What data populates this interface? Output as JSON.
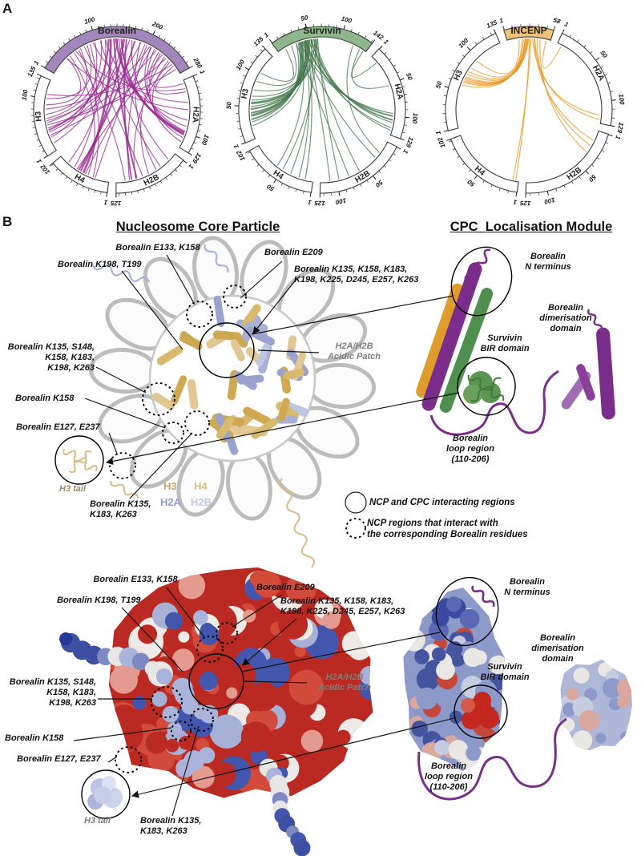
{
  "figure": {
    "panel_a_label": "A",
    "panel_b_label": "B"
  },
  "chart_data": [
    {
      "type": "chord-circos",
      "title": "Borealin crosslinks to nucleosome histones",
      "protein": {
        "name": "Borealin",
        "length": 280,
        "band_color": "#a287bd",
        "chord_color": "#96278f",
        "tick_labels": [
          1,
          100,
          200,
          280
        ]
      },
      "histones": [
        {
          "name": "H2A",
          "length": 129,
          "tick_labels": [
            1,
            100,
            129
          ]
        },
        {
          "name": "H2B",
          "length": 125,
          "tick_labels": [
            1,
            125
          ]
        },
        {
          "name": "H4",
          "length": 102,
          "tick_labels": [
            1,
            102
          ]
        },
        {
          "name": "H3",
          "length": 135,
          "tick_labels": [
            1,
            100,
            135
          ]
        }
      ],
      "crosslinks": [
        [
          138,
          "H2A",
          100,
          3
        ],
        [
          148,
          "H2A",
          104,
          2
        ],
        [
          206,
          "H2A",
          97,
          1
        ],
        [
          214,
          "H2A",
          103,
          1
        ],
        [
          228,
          "H2A",
          110,
          1
        ],
        [
          118,
          "H2A",
          76,
          1
        ],
        [
          94,
          "H2A",
          42,
          1
        ],
        [
          58,
          "H2A",
          16,
          1
        ],
        [
          248,
          "H2A",
          118,
          1
        ],
        [
          168,
          "H2A",
          88,
          1
        ],
        [
          36,
          "H2A",
          56,
          1
        ],
        [
          262,
          "H2A",
          22,
          1
        ],
        [
          224,
          "H2A",
          6,
          1
        ],
        [
          134,
          "H2B",
          86,
          2
        ],
        [
          158,
          "H2B",
          96,
          2
        ],
        [
          198,
          "H2B",
          100,
          1
        ],
        [
          238,
          "H2B",
          62,
          1
        ],
        [
          108,
          "H2B",
          36,
          1
        ],
        [
          76,
          "H2B",
          74,
          1
        ],
        [
          54,
          "H2B",
          108,
          1
        ],
        [
          184,
          "H2B",
          46,
          1
        ],
        [
          144,
          "H2B",
          16,
          1
        ],
        [
          252,
          "H2B",
          88,
          1
        ],
        [
          128,
          "H4",
          50,
          3
        ],
        [
          154,
          "H4",
          56,
          2
        ],
        [
          174,
          "H4",
          60,
          2
        ],
        [
          208,
          "H4",
          46,
          1
        ],
        [
          88,
          "H4",
          70,
          1
        ],
        [
          64,
          "H4",
          30,
          1
        ],
        [
          232,
          "H4",
          64,
          1
        ],
        [
          118,
          "H4",
          84,
          1
        ],
        [
          44,
          "H4",
          40,
          1
        ],
        [
          194,
          "H4",
          26,
          1
        ],
        [
          124,
          "H3",
          40,
          2
        ],
        [
          142,
          "H3",
          54,
          1
        ],
        [
          164,
          "H3",
          36,
          1
        ],
        [
          186,
          "H3",
          58,
          1
        ],
        [
          218,
          "H3",
          44,
          1
        ],
        [
          98,
          "H3",
          26,
          1
        ],
        [
          68,
          "H3",
          70,
          1
        ],
        [
          38,
          "H3",
          88,
          1
        ],
        [
          242,
          "H3",
          30,
          1
        ],
        [
          258,
          "H3",
          108,
          1
        ],
        [
          152,
          "H3",
          14,
          1
        ],
        [
          204,
          "H3",
          80,
          1
        ],
        [
          270,
          "H3",
          50,
          1
        ],
        [
          110,
          "H3",
          62,
          1
        ],
        [
          82,
          "H3",
          100,
          1
        ]
      ]
    },
    {
      "type": "chord-circos",
      "title": "Survivin crosslinks to nucleosome histones",
      "protein": {
        "name": "Survivin",
        "length": 142,
        "band_color": "#8fb78c",
        "chord_color": "#41754a",
        "tick_labels": [
          1,
          50,
          100,
          142
        ]
      },
      "histones": [
        {
          "name": "H2A",
          "length": 129,
          "tick_labels": [
            1,
            50,
            100,
            129
          ]
        },
        {
          "name": "H2B",
          "length": 125,
          "tick_labels": [
            1,
            50,
            100,
            125
          ]
        },
        {
          "name": "H4",
          "length": 102,
          "tick_labels": [
            1,
            50,
            102
          ]
        },
        {
          "name": "H3",
          "length": 135,
          "tick_labels": [
            1,
            50,
            100,
            135
          ]
        }
      ],
      "crosslinks": [
        [
          34,
          "H3",
          30,
          2
        ],
        [
          38,
          "H3",
          36,
          3
        ],
        [
          44,
          "H3",
          40,
          2
        ],
        [
          50,
          "H3",
          46,
          2
        ],
        [
          56,
          "H3",
          50,
          1
        ],
        [
          60,
          "H3",
          54,
          1
        ],
        [
          30,
          "H3",
          26,
          1
        ],
        [
          64,
          "H3",
          60,
          1
        ],
        [
          48,
          "H3",
          20,
          1
        ],
        [
          40,
          "H3",
          66,
          1
        ],
        [
          52,
          "H3",
          76,
          1
        ],
        [
          22,
          "H3",
          90,
          1
        ],
        [
          12,
          "H3",
          104,
          1
        ],
        [
          46,
          "H3",
          56,
          2
        ],
        [
          44,
          "H2A",
          100,
          2
        ],
        [
          54,
          "H2A",
          106,
          2
        ],
        [
          60,
          "H2A",
          110,
          1
        ],
        [
          36,
          "H2A",
          96,
          1
        ],
        [
          138,
          "H2A",
          12,
          1
        ],
        [
          132,
          "H2A",
          52,
          1
        ],
        [
          50,
          "H2A",
          118,
          1
        ],
        [
          58,
          "H2A",
          122,
          1
        ],
        [
          40,
          "H2B",
          30,
          1
        ],
        [
          58,
          "H2B",
          62,
          1
        ],
        [
          64,
          "H2B",
          96,
          1
        ],
        [
          48,
          "H2B",
          110,
          1
        ],
        [
          30,
          "H2B",
          80,
          1
        ],
        [
          120,
          "H2B",
          20,
          1
        ],
        [
          42,
          "H4",
          22,
          1
        ],
        [
          54,
          "H4",
          36,
          1
        ],
        [
          62,
          "H4",
          50,
          1
        ],
        [
          36,
          "H4",
          60,
          1
        ],
        [
          46,
          "H4",
          12,
          1
        ]
      ]
    },
    {
      "type": "chord-circos",
      "title": "INCENP crosslinks to nucleosome histones",
      "protein": {
        "name": "INCENP",
        "length": 58,
        "band_color": "#eec378",
        "chord_color": "#e8951e",
        "tick_labels": [
          1,
          58
        ]
      },
      "histones": [
        {
          "name": "H2A",
          "length": 129,
          "tick_labels": [
            1,
            50,
            100,
            129
          ]
        },
        {
          "name": "H2B",
          "length": 125,
          "tick_labels": [
            1,
            50,
            100,
            125
          ]
        },
        {
          "name": "H4",
          "length": 102,
          "tick_labels": [
            1,
            50,
            102
          ]
        },
        {
          "name": "H3",
          "length": 135,
          "tick_labels": [
            1,
            50,
            100,
            135
          ]
        }
      ],
      "crosslinks": [
        [
          22,
          "H3",
          58,
          1
        ],
        [
          24,
          "H3",
          62,
          1
        ],
        [
          25,
          "H3",
          64,
          1
        ],
        [
          26,
          "H3",
          66,
          1
        ],
        [
          27,
          "H3",
          68,
          1
        ],
        [
          28,
          "H3",
          70,
          1
        ],
        [
          29,
          "H3",
          74,
          1
        ],
        [
          24,
          "H3",
          78,
          1
        ],
        [
          20,
          "H3",
          84,
          1
        ],
        [
          16,
          "H3",
          96,
          1
        ],
        [
          34,
          "H2A",
          118,
          1
        ],
        [
          37,
          "H2A",
          124,
          1
        ],
        [
          52,
          "H2A",
          6,
          1
        ],
        [
          36,
          "H2B",
          14,
          1
        ],
        [
          40,
          "H2B",
          22,
          1
        ],
        [
          44,
          "H2B",
          32,
          1
        ],
        [
          30,
          "H4",
          4,
          1
        ],
        [
          32,
          "H4",
          8,
          1
        ]
      ]
    }
  ],
  "panel_b": {
    "ncp_title": "Nucleosome Core Particle",
    "cpc_title": "CPC_Localisation Module",
    "annotations": {
      "e133": "Borealin E133, K158",
      "k198": "Borealin K198, T199",
      "e209": "Borealin E209",
      "big": "Borealin K135, K158, K183,\nK198, K225, D245, E257, K263",
      "left6": "Borealin K135, S148,\nK158, K183,\nK198, K263",
      "k158": "Borealin K158",
      "e127": "Borealin E127, E237",
      "h3tail": "H3 tail",
      "k135": "Borealin K135,\nK183, K263",
      "acidic": "H2A/H2B\nAcidic Patch",
      "nterm": "Borealin\nN terminus",
      "dimer": "Borealin\ndimerisation\ndomain",
      "bir": "Survivin\nBIR domain",
      "loop": "Borealin\nloop region\n(110-206)"
    },
    "key": {
      "solid": "NCP and CPC interacting regions",
      "dotted": "NCP regions that interact with\nthe corresponding Borealin residues"
    },
    "histone_legend": [
      {
        "label": "H3",
        "color": "#c9a36a"
      },
      {
        "label": "H4",
        "color": "#d6c189"
      },
      {
        "label": "H2A",
        "color": "#9599cb"
      },
      {
        "label": "H2B",
        "color": "#c2c8de"
      }
    ]
  }
}
